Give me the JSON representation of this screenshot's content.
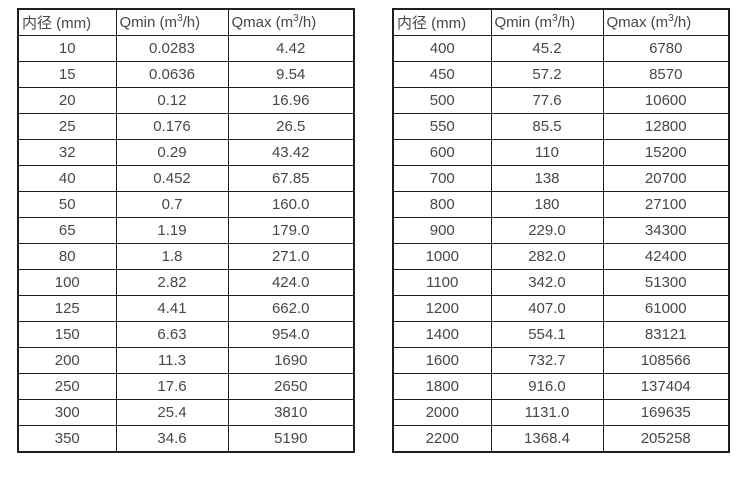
{
  "page": {
    "background": "#ffffff",
    "border_color": "#1f1f1f",
    "text_color": "#474747"
  },
  "headers": {
    "diameter": "内径 (mm)",
    "qmin": {
      "pre": "Qmin (m",
      "sup": "3",
      "post": "/h)"
    },
    "qmax": {
      "pre": "Qmax (m",
      "sup": "3",
      "post": "/h)"
    }
  },
  "chart_data": [
    {
      "type": "table",
      "title": "",
      "columns": [
        "内径 (mm)",
        "Qmin (m³/h)",
        "Qmax (m³/h)"
      ],
      "rows": [
        [
          "10",
          "0.0283",
          "4.42"
        ],
        [
          "15",
          "0.0636",
          "9.54"
        ],
        [
          "20",
          "0.12",
          "16.96"
        ],
        [
          "25",
          "0.176",
          "26.5"
        ],
        [
          "32",
          "0.29",
          "43.42"
        ],
        [
          "40",
          "0.452",
          "67.85"
        ],
        [
          "50",
          "0.7",
          "160.0"
        ],
        [
          "65",
          "1.19",
          "179.0"
        ],
        [
          "80",
          "1.8",
          "271.0"
        ],
        [
          "100",
          "2.82",
          "424.0"
        ],
        [
          "125",
          "4.41",
          "662.0"
        ],
        [
          "150",
          "6.63",
          "954.0"
        ],
        [
          "200",
          "11.3",
          "1690"
        ],
        [
          "250",
          "17.6",
          "2650"
        ],
        [
          "300",
          "25.4",
          "3810"
        ],
        [
          "350",
          "34.6",
          "5190"
        ]
      ]
    },
    {
      "type": "table",
      "title": "",
      "columns": [
        "内径 (mm)",
        "Qmin (m³/h)",
        "Qmax (m³/h)"
      ],
      "rows": [
        [
          "400",
          "45.2",
          "6780"
        ],
        [
          "450",
          "57.2",
          "8570"
        ],
        [
          "500",
          "77.6",
          "10600"
        ],
        [
          "550",
          "85.5",
          "12800"
        ],
        [
          "600",
          "110",
          "15200"
        ],
        [
          "700",
          "138",
          "20700"
        ],
        [
          "800",
          "180",
          "27100"
        ],
        [
          "900",
          "229.0",
          "34300"
        ],
        [
          "1000",
          "282.0",
          "42400"
        ],
        [
          "1100",
          "342.0",
          "51300"
        ],
        [
          "1200",
          "407.0",
          "61000"
        ],
        [
          "1400",
          "554.1",
          "83121"
        ],
        [
          "1600",
          "732.7",
          "108566"
        ],
        [
          "1800",
          "916.0",
          "137404"
        ],
        [
          "2000",
          "1131.0",
          "169635"
        ],
        [
          "2200",
          "1368.4",
          "205258"
        ]
      ]
    }
  ]
}
